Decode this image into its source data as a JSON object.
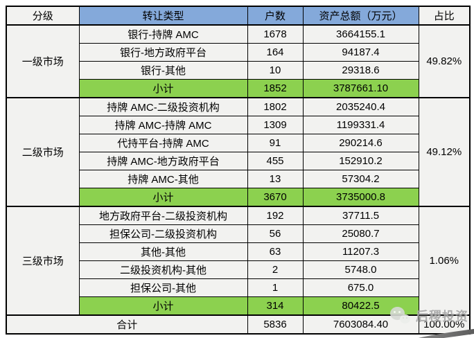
{
  "table": {
    "columns": [
      "分级",
      "转让类型",
      "户数",
      "资产总额（万元）",
      "占比"
    ],
    "colors": {
      "header_blue": "#84a9da",
      "subtotal_green": "#8cd14f",
      "cell_background": "#f2f2f0",
      "border": "#000000"
    },
    "groups": [
      {
        "level": "一级市场",
        "share": "49.82%",
        "rows": [
          {
            "type": "银行-持牌 AMC",
            "count": "1678",
            "amount": "3664155.1"
          },
          {
            "type": "银行-地方政府平台",
            "count": "164",
            "amount": "94187.4"
          },
          {
            "type": "银行-其他",
            "count": "10",
            "amount": "29318.6"
          }
        ],
        "subtotal": {
          "label": "小计",
          "count": "1852",
          "amount": "3787661.10"
        }
      },
      {
        "level": "二级市场",
        "share": "49.12%",
        "rows": [
          {
            "type": "持牌 AMC-二级投资机构",
            "count": "1802",
            "amount": "2035240.4"
          },
          {
            "type": "持牌 AMC-持牌 AMC",
            "count": "1309",
            "amount": "1199331.4"
          },
          {
            "type": "代持平台-持牌 AMC",
            "count": "91",
            "amount": "290214.6"
          },
          {
            "type": "持牌 AMC-地方政府平台",
            "count": "455",
            "amount": "152910.2"
          },
          {
            "type": "持牌 AMC-其他",
            "count": "13",
            "amount": "57304.2"
          }
        ],
        "subtotal": {
          "label": "小计",
          "count": "3670",
          "amount": "3735000.8"
        }
      },
      {
        "level": "三级市场",
        "share": "1.06%",
        "rows": [
          {
            "type": "地方政府平台-二级投资机构",
            "count": "192",
            "amount": "37711.5"
          },
          {
            "type": "担保公司-二级投资机构",
            "count": "56",
            "amount": "25080.7"
          },
          {
            "type": "其他-其他",
            "count": "63",
            "amount": "11207.3"
          },
          {
            "type": "二级投资机构-其他",
            "count": "2",
            "amount": "5748.0"
          },
          {
            "type": "担保公司-其他",
            "count": "1",
            "amount": "675.0"
          }
        ],
        "subtotal": {
          "label": "小计",
          "count": "314",
          "amount": "80422.5"
        }
      }
    ],
    "total": {
      "label": "合计",
      "count": "5836",
      "amount": "7603084.40",
      "share": "100.00%"
    }
  },
  "watermark": {
    "text": "后稷投资",
    "icon": "wechat-icon"
  },
  "chart_data": {
    "type": "table",
    "columns": [
      "分级",
      "转让类型",
      "户数",
      "资产总额（万元）",
      "占比"
    ],
    "rows": [
      [
        "一级市场",
        "银行-持牌 AMC",
        "1678",
        "3664155.1",
        "49.82%"
      ],
      [
        "",
        "银行-地方政府平台",
        "164",
        "94187.4",
        ""
      ],
      [
        "",
        "银行-其他",
        "10",
        "29318.6",
        ""
      ],
      [
        "",
        "小计",
        "1852",
        "3787661.10",
        ""
      ],
      [
        "二级市场",
        "持牌 AMC-二级投资机构",
        "1802",
        "2035240.4",
        "49.12%"
      ],
      [
        "",
        "持牌 AMC-持牌 AMC",
        "1309",
        "1199331.4",
        ""
      ],
      [
        "",
        "代持平台-持牌 AMC",
        "91",
        "290214.6",
        ""
      ],
      [
        "",
        "持牌 AMC-地方政府平台",
        "455",
        "152910.2",
        ""
      ],
      [
        "",
        "持牌 AMC-其他",
        "13",
        "57304.2",
        ""
      ],
      [
        "",
        "小计",
        "3670",
        "3735000.8",
        ""
      ],
      [
        "三级市场",
        "地方政府平台-二级投资机构",
        "192",
        "37711.5",
        "1.06%"
      ],
      [
        "",
        "担保公司-二级投资机构",
        "56",
        "25080.7",
        ""
      ],
      [
        "",
        "其他-其他",
        "63",
        "11207.3",
        ""
      ],
      [
        "",
        "二级投资机构-其他",
        "2",
        "5748.0",
        ""
      ],
      [
        "",
        "担保公司-其他",
        "1",
        "675.0",
        ""
      ],
      [
        "",
        "小计",
        "314",
        "80422.5",
        ""
      ],
      [
        "合计",
        "",
        "5836",
        "7603084.40",
        "100.00%"
      ]
    ]
  }
}
